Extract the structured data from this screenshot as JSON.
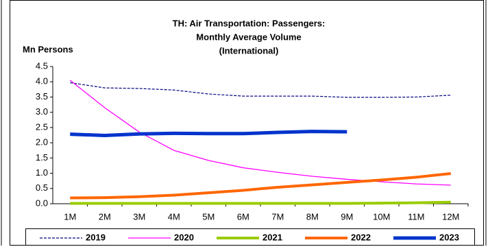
{
  "chart_data": {
    "type": "line",
    "title": [
      "TH: Air Transportation: Passengers:",
      "Monthly Average Volume",
      "(International)"
    ],
    "y_label": "Mn Persons",
    "categories": [
      "1M",
      "2M",
      "3M",
      "4M",
      "5M",
      "6M",
      "7M",
      "8M",
      "9M",
      "10M",
      "11M",
      "12M"
    ],
    "ylim": [
      0,
      4.5
    ],
    "yticks": [
      {
        "value": 0,
        "label": "0.0"
      },
      0.5,
      {
        "value": 1,
        "label": "1.0"
      },
      1.5,
      {
        "value": 2,
        "label": "2.0"
      },
      2.5,
      {
        "value": 3,
        "label": "3.0"
      },
      3.5,
      {
        "value": 4,
        "label": "4.0"
      },
      4.5
    ],
    "series": [
      {
        "name": "2019",
        "color": "#000080",
        "values": [
          3.97,
          3.8,
          3.78,
          3.73,
          3.6,
          3.53,
          3.53,
          3.53,
          3.49,
          3.49,
          3.5,
          3.56
        ]
      },
      {
        "name": "2020",
        "color": "#ff00ff",
        "values": [
          4.05,
          3.15,
          2.35,
          1.75,
          1.42,
          1.18,
          1.03,
          0.9,
          0.8,
          0.72,
          0.65,
          0.61
        ]
      },
      {
        "name": "2021",
        "color": "#99cc00",
        "values": [
          0.01,
          0.01,
          0.01,
          0.01,
          0.01,
          0.01,
          0.01,
          0.01,
          0.01,
          0.02,
          0.03,
          0.05
        ]
      },
      {
        "name": "2022",
        "color": "#ff6600",
        "values": [
          0.19,
          0.2,
          0.23,
          0.28,
          0.36,
          0.44,
          0.54,
          0.62,
          0.7,
          0.78,
          0.87,
          0.99
        ]
      },
      {
        "name": "2023",
        "color": "#0033cc",
        "values": [
          2.28,
          2.24,
          2.29,
          2.31,
          2.3,
          2.3,
          2.34,
          2.37,
          2.36,
          null,
          null,
          null
        ]
      }
    ]
  }
}
